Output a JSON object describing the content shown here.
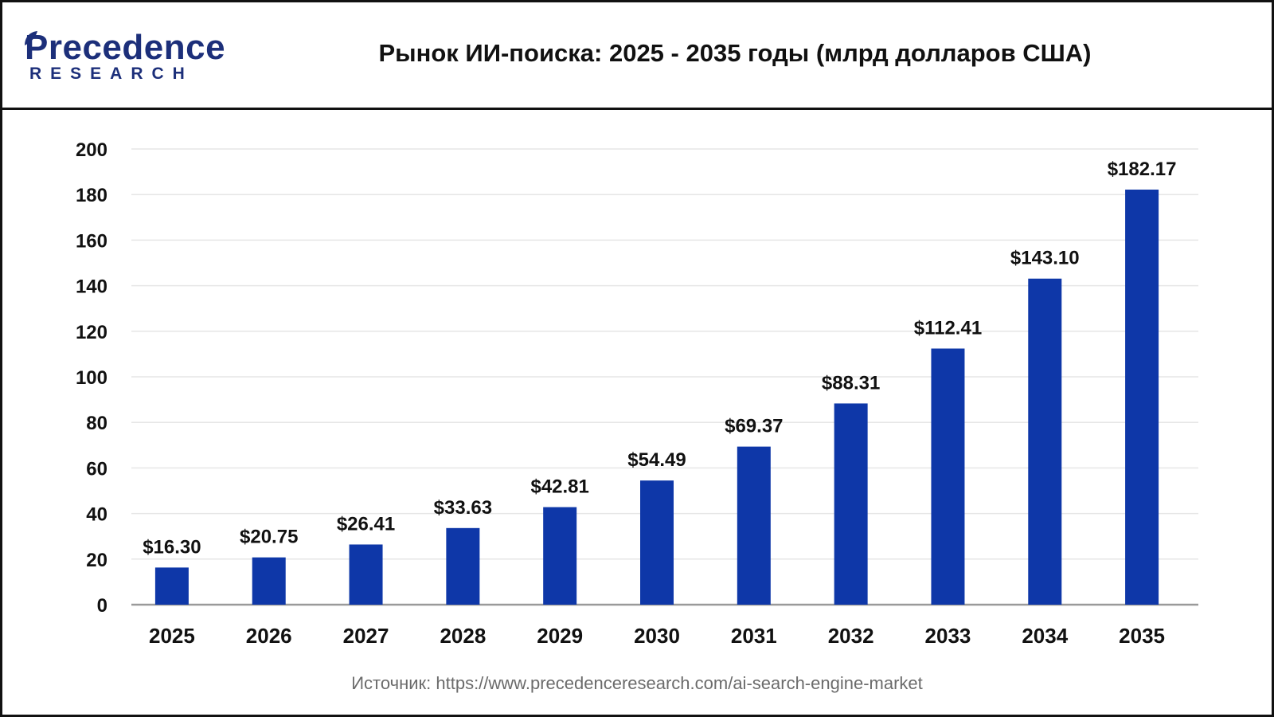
{
  "header": {
    "logo_top": "Precedence",
    "logo_bottom": "RESEARCH",
    "title": "Рынок ИИ-поиска: 2025 - 2035 годы (млрд долларов США)"
  },
  "source": "Источник: https://www.precedenceresearch.com/ai-search-engine-market",
  "colors": {
    "bar": "#0e37a8",
    "brand": "#1c2f7a",
    "grid": "#e6e6e6",
    "axis": "#9a9a9a"
  },
  "chart_data": {
    "type": "bar",
    "title": "Рынок ИИ-поиска: 2025 - 2035 годы (млрд долларов США)",
    "xlabel": "",
    "ylabel": "",
    "categories": [
      "2025",
      "2026",
      "2027",
      "2028",
      "2029",
      "2030",
      "2031",
      "2032",
      "2033",
      "2034",
      "2035"
    ],
    "values": [
      16.3,
      20.75,
      26.41,
      33.63,
      42.81,
      54.49,
      69.37,
      88.31,
      112.41,
      143.1,
      182.17
    ],
    "data_labels": [
      "$16.30",
      "$20.75",
      "$26.41",
      "$33.63",
      "$42.81",
      "$54.49",
      "$69.37",
      "$88.31",
      "$112.41",
      "$143.10",
      "$182.17"
    ],
    "ylim": [
      0,
      200
    ],
    "yticks": [
      0,
      20,
      40,
      60,
      80,
      100,
      120,
      140,
      160,
      180,
      200
    ],
    "grid": true,
    "legend": "none"
  }
}
